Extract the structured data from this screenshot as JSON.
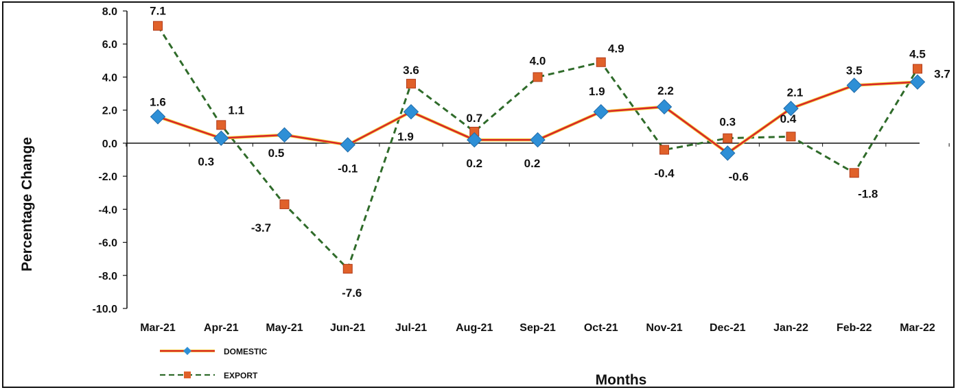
{
  "chart_data": {
    "type": "line",
    "xlabel": "Months",
    "ylabel": "Percentage Change",
    "ylim": [
      -10.0,
      8.0
    ],
    "ytick_step": 2.0,
    "yticks": [
      "8.0",
      "6.0",
      "4.0",
      "2.0",
      "0.0",
      "-2.0",
      "-4.0",
      "-6.0",
      "-8.0",
      "-10.0"
    ],
    "categories": [
      "Mar-21",
      "Apr-21",
      "May-21",
      "Jun-21",
      "Jul-21",
      "Aug-21",
      "Sep-21",
      "Oct-21",
      "Nov-21",
      "Dec-21",
      "Jan-22",
      "Feb-22",
      "Mar-22"
    ],
    "series": [
      {
        "name": "DOMESTIC",
        "line_color": "#d8232a",
        "marker_color": "#2e8fd6",
        "marker": "diamond",
        "style": "solid",
        "values": [
          1.6,
          0.3,
          0.5,
          -0.1,
          1.9,
          0.2,
          0.2,
          1.9,
          2.2,
          -0.6,
          2.1,
          3.5,
          3.7
        ],
        "labels": [
          "1.6",
          "0.3",
          "0.5",
          "-0.1",
          "1.9",
          "0.2",
          "0.2",
          "1.9",
          "2.2",
          "-0.6",
          "2.1",
          "3.5",
          "3.7"
        ]
      },
      {
        "name": "EXPORT",
        "line_color": "#2f6b2a",
        "marker_color": "#e0612a",
        "marker": "square",
        "style": "dashed",
        "values": [
          7.1,
          1.1,
          -3.7,
          -7.6,
          3.6,
          0.7,
          4.0,
          4.9,
          -0.4,
          0.3,
          0.4,
          -1.8,
          4.5
        ],
        "labels": [
          "7.1",
          "1.1",
          "-3.7",
          "-7.6",
          "3.6",
          "0.7",
          "4.0",
          "4.9",
          "-0.4",
          "0.3",
          "0.4",
          "-1.8",
          "4.5"
        ]
      }
    ],
    "legend_position": "bottom-left",
    "grid": false
  }
}
